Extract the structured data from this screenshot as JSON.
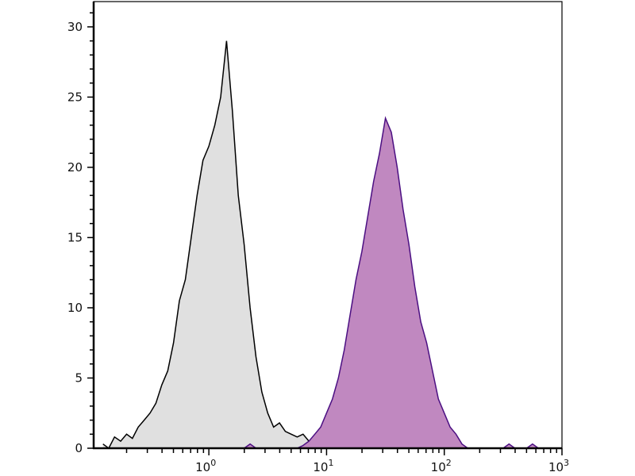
{
  "chart_data": {
    "type": "area",
    "title": "",
    "xlabel": "",
    "ylabel": "",
    "x_scale": "log",
    "xlim": [
      0.105,
      1000
    ],
    "ylim": [
      0,
      31.8
    ],
    "grid": false,
    "x_tick_labels": [
      {
        "value": 1,
        "base": "10",
        "exp": "0"
      },
      {
        "value": 10,
        "base": "10",
        "exp": "1"
      },
      {
        "value": 100,
        "base": "10",
        "exp": "2"
      },
      {
        "value": 1000,
        "base": "10",
        "exp": "3"
      }
    ],
    "y_ticks": [
      0,
      5,
      10,
      15,
      20,
      25,
      30
    ],
    "y_tick_labels": [
      "0",
      "5",
      "10",
      "15",
      "20",
      "25",
      "30"
    ],
    "x": [
      0.126,
      0.141,
      0.158,
      0.178,
      0.2,
      0.224,
      0.251,
      0.282,
      0.316,
      0.355,
      0.398,
      0.447,
      0.501,
      0.562,
      0.631,
      0.708,
      0.794,
      0.891,
      1.0,
      1.122,
      1.259,
      1.413,
      1.585,
      1.778,
      1.995,
      2.239,
      2.512,
      2.818,
      3.162,
      3.548,
      3.981,
      4.467,
      5.012,
      5.623,
      6.31,
      7.079,
      7.943,
      8.913,
      10.0,
      11.22,
      12.59,
      14.13,
      15.85,
      17.78,
      19.95,
      22.39,
      25.12,
      28.18,
      31.62,
      35.48,
      39.81,
      44.67,
      50.12,
      56.23,
      63.1,
      70.79,
      79.43,
      89.13,
      100.0,
      112.2,
      125.9,
      141.3,
      158.5,
      177.8,
      199.5,
      223.9,
      251.2,
      281.8,
      316.2,
      354.8,
      398.1,
      446.7,
      501.2,
      562.3,
      631.0,
      707.9,
      794.3
    ],
    "series": [
      {
        "color_line": "#000000",
        "color_fill": "#e0e0e0",
        "values": [
          0.3,
          0,
          0.8,
          0.5,
          1.0,
          0.7,
          1.5,
          2.0,
          2.5,
          3.2,
          4.5,
          5.5,
          7.5,
          10.5,
          12,
          15,
          18,
          20.5,
          21.5,
          23,
          25,
          29,
          24,
          18,
          14.5,
          10,
          6.5,
          4.0,
          2.5,
          1.5,
          1.8,
          1.2,
          1.0,
          0.8,
          1.0,
          0.5,
          0.3,
          0,
          0,
          0,
          0,
          0,
          0,
          0,
          0,
          0,
          0,
          0,
          0,
          0,
          0,
          0,
          0,
          0,
          0,
          0,
          0,
          0,
          0,
          0,
          0,
          0,
          0,
          0,
          0,
          0,
          0,
          0,
          0,
          0,
          0,
          0,
          0,
          0,
          0,
          0,
          0
        ]
      },
      {
        "color_line": "#4b0f82",
        "color_fill": "#c088c0",
        "values": [
          0,
          0,
          0,
          0,
          0,
          0,
          0,
          0,
          0,
          0,
          0,
          0,
          0,
          0,
          0,
          0,
          0,
          0,
          0,
          0,
          0,
          0,
          0,
          0,
          0,
          0.3,
          0,
          0,
          0,
          0,
          0,
          0,
          0,
          0,
          0.2,
          0.5,
          1.0,
          1.5,
          2.5,
          3.5,
          5.0,
          7.0,
          9.5,
          12,
          14,
          16.5,
          19,
          21,
          23.5,
          22.5,
          20,
          17,
          14.5,
          11.5,
          9,
          7.5,
          5.5,
          3.5,
          2.5,
          1.5,
          1.0,
          0.3,
          0,
          0,
          0,
          0,
          0,
          0,
          0,
          0.3,
          0,
          0,
          0,
          0.3,
          0,
          0,
          0
        ]
      }
    ]
  }
}
